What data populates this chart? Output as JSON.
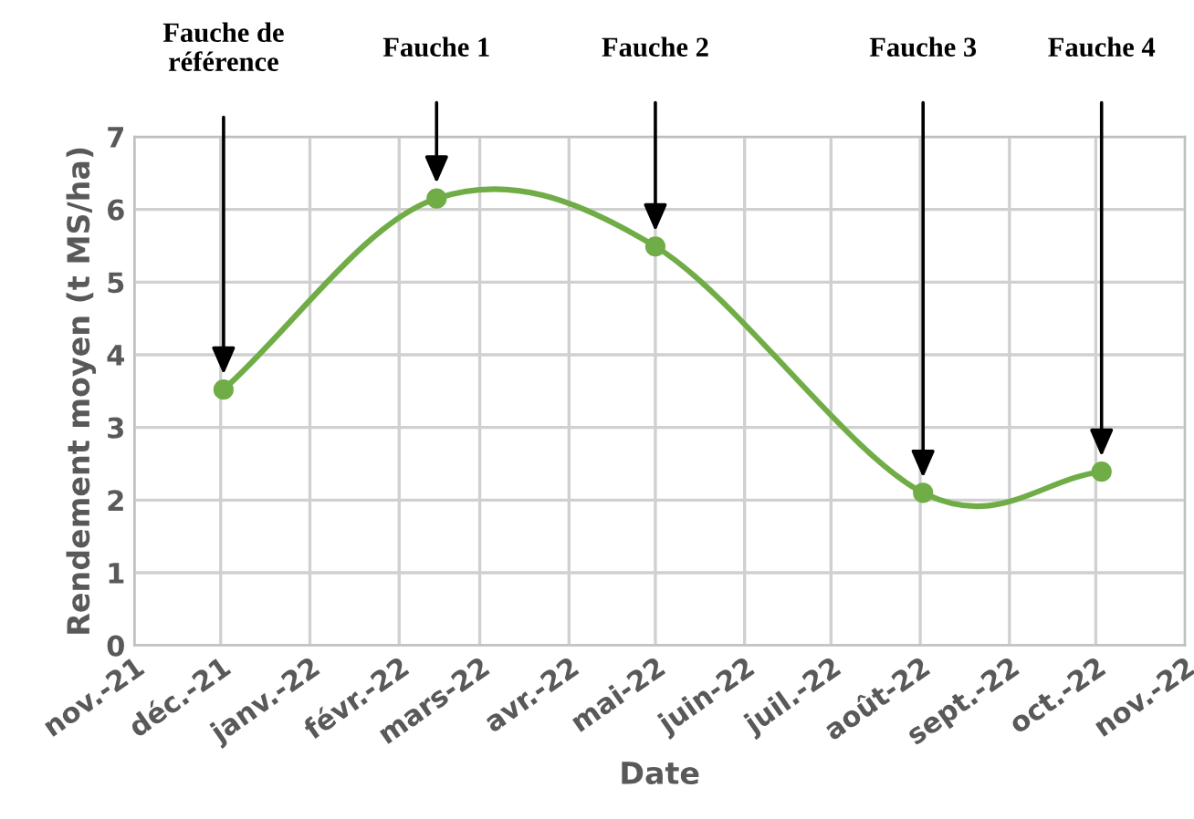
{
  "chart_data": {
    "type": "line",
    "xlabel": "Date",
    "ylabel": "Rendement moyen (t MS/ha)",
    "x": [
      "2021-12-02",
      "2022-02-14",
      "2022-05-01",
      "2022-08-02",
      "2022-10-03"
    ],
    "series": [
      {
        "color": "#70ad47",
        "values": [
          3.52,
          6.15,
          5.49,
          2.1,
          2.39
        ]
      }
    ],
    "marker": "circle",
    "line_style": "solid",
    "grid": true,
    "legend": false,
    "xlim": [
      "2021-11-01",
      "2022-11-01"
    ],
    "xticks": [
      {
        "value": "2021-11-01",
        "label": "nov.-21"
      },
      {
        "value": "2021-12-01",
        "label": "déc.-21"
      },
      {
        "value": "2022-01-01",
        "label": "janv.-22"
      },
      {
        "value": "2022-02-01",
        "label": "févr.-22"
      },
      {
        "value": "2022-03-01",
        "label": "mars-22"
      },
      {
        "value": "2022-04-01",
        "label": "avr.-22"
      },
      {
        "value": "2022-05-01",
        "label": "mai-22"
      },
      {
        "value": "2022-06-01",
        "label": "juin-22"
      },
      {
        "value": "2022-07-01",
        "label": "juil.-22"
      },
      {
        "value": "2022-08-01",
        "label": "août-22"
      },
      {
        "value": "2022-09-01",
        "label": "sept.-22"
      },
      {
        "value": "2022-10-01",
        "label": "oct.-22"
      },
      {
        "value": "2022-11-01",
        "label": "nov.-22"
      }
    ],
    "ylim": [
      0,
      7
    ],
    "yticks": [
      0,
      1,
      2,
      3,
      4,
      5,
      6,
      7
    ],
    "annotations": [
      "Fauche de\nréférence",
      "Fauche 1",
      "Fauche 2",
      "Fauche 3",
      "Fauche 4"
    ]
  }
}
